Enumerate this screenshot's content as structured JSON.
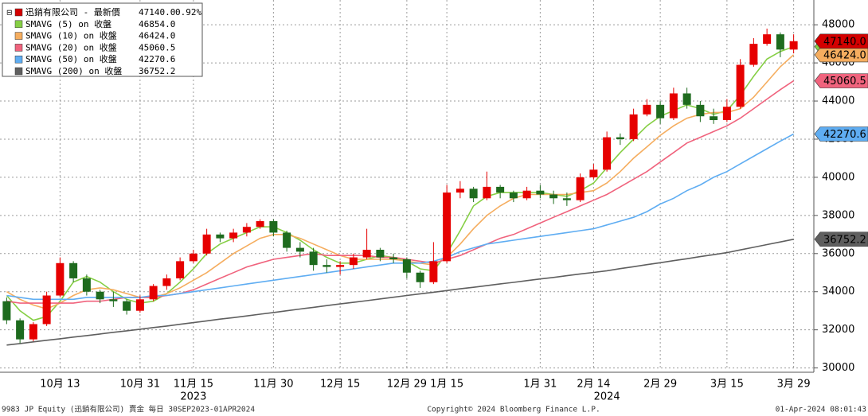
{
  "chart_data": {
    "type": "candlestick",
    "price_name": "迅銷有限公司 - 最新價",
    "price_label": "47140.0",
    "change_label": "0.92%",
    "up_color": "#e60000",
    "down_color": "#1e6b1e",
    "price_color": "#d40000",
    "categories": [
      null,
      null,
      null,
      null,
      "10月 13",
      null,
      null,
      null,
      null,
      null,
      "10月 31",
      null,
      null,
      null,
      "11月 15",
      null,
      null,
      null,
      null,
      null,
      "11月 30",
      null,
      null,
      null,
      null,
      "12月 15",
      null,
      null,
      null,
      null,
      "12月 29",
      null,
      null,
      "1月 15",
      null,
      null,
      null,
      null,
      null,
      null,
      "1月 31",
      null,
      null,
      null,
      "2月 14",
      null,
      null,
      null,
      null,
      "2月 29",
      null,
      null,
      null,
      null,
      "3月 15",
      null,
      null,
      null,
      null,
      "3月 29"
    ],
    "years": [
      {
        "label": "2023",
        "at": 14
      },
      {
        "label": "2024",
        "at": 45
      }
    ],
    "open": [
      33500,
      32500,
      31500,
      32300,
      33800,
      35500,
      34700,
      34000,
      33600,
      33500,
      33000,
      33600,
      34300,
      34700,
      35600,
      36000,
      37000,
      36800,
      37100,
      37400,
      37700,
      37100,
      36300,
      36100,
      35400,
      35300,
      35400,
      35800,
      36200,
      35800,
      35700,
      35000,
      34500,
      35600,
      39200,
      39400,
      38900,
      39500,
      39200,
      38900,
      39300,
      39100,
      38900,
      38800,
      40000,
      40400,
      42100,
      42000,
      43300,
      43800,
      43100,
      44400,
      43800,
      43200,
      43000,
      43700,
      45900,
      47000,
      47500,
      46700
    ],
    "high": [
      33700,
      32600,
      32400,
      34000,
      35800,
      35600,
      34900,
      34100,
      34000,
      33600,
      33800,
      34400,
      34900,
      35800,
      36200,
      37300,
      37100,
      37300,
      37600,
      37800,
      37800,
      37200,
      36600,
      36300,
      35700,
      35600,
      36000,
      37300,
      36300,
      36000,
      35800,
      35100,
      36600,
      39600,
      39800,
      39500,
      40300,
      39600,
      39300,
      39500,
      39600,
      39300,
      39200,
      40200,
      40700,
      42400,
      42300,
      43600,
      44100,
      44000,
      44700,
      44700,
      44000,
      43600,
      44100,
      46200,
      47300,
      47800,
      47600,
      47500
    ],
    "low": [
      32300,
      31300,
      31400,
      32200,
      33700,
      34500,
      33800,
      33400,
      33200,
      32800,
      32900,
      33500,
      34100,
      34600,
      35500,
      35900,
      36600,
      36600,
      36900,
      37300,
      36900,
      36100,
      35800,
      35100,
      35000,
      34900,
      35200,
      35700,
      35600,
      35500,
      34700,
      34200,
      34400,
      35500,
      38900,
      38700,
      38800,
      38900,
      38700,
      38800,
      38900,
      38600,
      38500,
      38700,
      39900,
      40300,
      41700,
      41900,
      43200,
      42800,
      43000,
      43600,
      42900,
      42800,
      42900,
      43600,
      45800,
      46900,
      46300,
      46500
    ],
    "close": [
      32500,
      31500,
      32300,
      33800,
      35500,
      34700,
      34000,
      33600,
      33500,
      33000,
      33600,
      34300,
      34700,
      35600,
      36000,
      37000,
      36800,
      37100,
      37400,
      37700,
      37100,
      36300,
      36100,
      35400,
      35300,
      35400,
      35800,
      36200,
      35800,
      35700,
      35000,
      34500,
      35600,
      39200,
      39400,
      38900,
      39500,
      39200,
      38900,
      39300,
      39100,
      38900,
      38800,
      40000,
      40400,
      42100,
      42000,
      43300,
      43800,
      43100,
      44400,
      43800,
      43200,
      43000,
      43700,
      45900,
      47000,
      47500,
      46700,
      47140
    ],
    "series": [
      {
        "name": "SMAVG (5)  on 收盤",
        "color": "#86cf45",
        "label": "46854.0",
        "values": [
          33800,
          33000,
          32500,
          32700,
          33500,
          34500,
          34800,
          34500,
          34000,
          33600,
          33400,
          33500,
          33900,
          34500,
          35200,
          36000,
          36500,
          36800,
          37100,
          37400,
          37400,
          37100,
          36700,
          36200,
          35800,
          35500,
          35500,
          35700,
          35900,
          35800,
          35600,
          35200,
          35100,
          36000,
          37200,
          38500,
          39000,
          39200,
          39200,
          39200,
          39200,
          39100,
          39000,
          39300,
          39700,
          40500,
          41300,
          42000,
          42700,
          43200,
          43500,
          43800,
          43600,
          43300,
          43500,
          44300,
          45300,
          46200,
          46600,
          46854
        ]
      },
      {
        "name": "SMAVG (10)  on 收盤",
        "color": "#f5ad5f",
        "label": "46424.0",
        "values": [
          34000,
          33600,
          33300,
          33100,
          33400,
          33800,
          34100,
          34200,
          34100,
          33900,
          33700,
          33700,
          33900,
          34200,
          34600,
          35000,
          35500,
          36000,
          36400,
          36800,
          37000,
          37000,
          36800,
          36500,
          36200,
          35900,
          35700,
          35700,
          35700,
          35700,
          35600,
          35500,
          35400,
          35800,
          36500,
          37300,
          38000,
          38500,
          38900,
          39100,
          39100,
          39100,
          39100,
          39200,
          39300,
          39700,
          40300,
          41000,
          41600,
          42200,
          42700,
          43100,
          43300,
          43400,
          43400,
          43600,
          44200,
          45000,
          45800,
          46424
        ]
      },
      {
        "name": "SMAVG (20)  on 收盤",
        "color": "#f0637d",
        "label": "45060.5",
        "values": [
          33500,
          33400,
          33400,
          33400,
          33400,
          33400,
          33500,
          33500,
          33600,
          33700,
          33700,
          33700,
          33800,
          33900,
          34100,
          34400,
          34700,
          35000,
          35300,
          35500,
          35700,
          35800,
          35900,
          36000,
          35900,
          35900,
          35900,
          35900,
          35800,
          35800,
          35700,
          35600,
          35500,
          35700,
          35900,
          36200,
          36500,
          36800,
          37000,
          37300,
          37600,
          37900,
          38200,
          38500,
          38800,
          39100,
          39500,
          39900,
          40300,
          40800,
          41300,
          41800,
          42100,
          42400,
          42700,
          43100,
          43600,
          44100,
          44600,
          45060.5
        ]
      },
      {
        "name": "SMAVG (50)  on 收盤",
        "color": "#5fadf2",
        "label": "42270.6",
        "values": [
          33800,
          33700,
          33600,
          33600,
          33600,
          33600,
          33700,
          33700,
          33700,
          33700,
          33700,
          33800,
          33800,
          33900,
          34000,
          34100,
          34200,
          34300,
          34400,
          34500,
          34600,
          34700,
          34800,
          34900,
          35000,
          35100,
          35200,
          35300,
          35400,
          35500,
          35500,
          35500,
          35600,
          35800,
          36100,
          36300,
          36500,
          36600,
          36700,
          36800,
          36900,
          37000,
          37100,
          37200,
          37300,
          37500,
          37700,
          37900,
          38200,
          38600,
          38900,
          39300,
          39600,
          40000,
          40300,
          40700,
          41100,
          41500,
          41900,
          42270.6
        ]
      },
      {
        "name": "SMAVG (200)  on 收盤",
        "color": "#5f5f5f",
        "label": "36752.2",
        "values": [
          31200,
          31280,
          31370,
          31450,
          31530,
          31620,
          31700,
          31780,
          31870,
          31950,
          32030,
          32120,
          32200,
          32290,
          32380,
          32470,
          32560,
          32640,
          32730,
          32820,
          32910,
          33000,
          33090,
          33180,
          33270,
          33360,
          33440,
          33530,
          33620,
          33710,
          33800,
          33890,
          33970,
          34060,
          34150,
          34230,
          34320,
          34410,
          34490,
          34580,
          34670,
          34750,
          34840,
          34930,
          35010,
          35100,
          35210,
          35310,
          35420,
          35520,
          35630,
          35730,
          35840,
          35940,
          36050,
          36190,
          36330,
          36470,
          36610,
          36752.2
        ]
      }
    ],
    "ylim": [
      29900,
      49300
    ],
    "yticks": [
      30000,
      32000,
      34000,
      36000,
      38000,
      40000,
      42000,
      44000,
      46000,
      48000
    ],
    "grid": true,
    "footer_left": "9983 JP Equity (迅銷有限公司) 賣金  每日 30SEP2023-01APR2024",
    "footer_center": "Copyright© 2024 Bloomberg Finance L.P.",
    "footer_right": "01-Apr-2024 08:01:43"
  }
}
